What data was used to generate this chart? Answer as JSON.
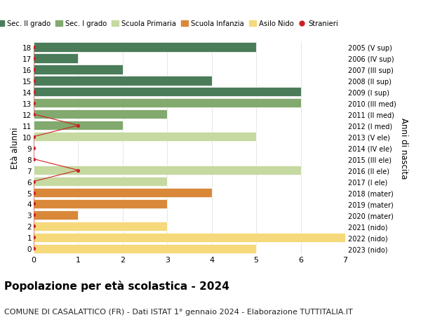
{
  "ages": [
    18,
    17,
    16,
    15,
    14,
    13,
    12,
    11,
    10,
    9,
    8,
    7,
    6,
    5,
    4,
    3,
    2,
    1,
    0
  ],
  "right_labels": [
    "2005 (V sup)",
    "2006 (IV sup)",
    "2007 (III sup)",
    "2008 (II sup)",
    "2009 (I sup)",
    "2010 (III med)",
    "2011 (II med)",
    "2012 (I med)",
    "2013 (V ele)",
    "2014 (IV ele)",
    "2015 (III ele)",
    "2016 (II ele)",
    "2017 (I ele)",
    "2018 (mater)",
    "2019 (mater)",
    "2020 (mater)",
    "2021 (nido)",
    "2022 (nido)",
    "2023 (nido)"
  ],
  "bar_values": [
    5,
    1,
    2,
    4,
    6,
    6,
    3,
    2,
    5,
    0,
    0,
    6,
    3,
    4,
    3,
    1,
    3,
    7,
    5
  ],
  "bar_colors": [
    "#4a7c59",
    "#4a7c59",
    "#4a7c59",
    "#4a7c59",
    "#4a7c59",
    "#82a96e",
    "#82a96e",
    "#82a96e",
    "#c5d9a0",
    "#c5d9a0",
    "#c5d9a0",
    "#c5d9a0",
    "#c5d9a0",
    "#d9883a",
    "#d9883a",
    "#d9883a",
    "#f5d97a",
    "#f5d97a",
    "#f5d97a"
  ],
  "stranieri_dot_x": [
    0,
    0,
    0,
    0,
    0,
    0,
    0,
    1,
    0,
    0,
    0,
    1,
    0,
    0,
    0,
    0,
    0,
    0,
    0
  ],
  "legend_labels": [
    "Sec. II grado",
    "Sec. I grado",
    "Scuola Primaria",
    "Scuola Infanzia",
    "Asilo Nido",
    "Stranieri"
  ],
  "legend_colors": [
    "#4a7c59",
    "#82a96e",
    "#c5d9a0",
    "#d9883a",
    "#f5d97a",
    "#cc2222"
  ],
  "ylabel": "Età alunni",
  "ylabel_right": "Anni di nascita",
  "xlim": [
    0,
    7
  ],
  "ylim": [
    -0.5,
    18.5
  ],
  "title": "Popolazione per età scolastica - 2024",
  "subtitle": "COMUNE DI CASALATTICO (FR) - Dati ISTAT 1° gennaio 2024 - Elaborazione TUTTITALIA.IT",
  "title_fontsize": 11,
  "subtitle_fontsize": 8,
  "bg_color": "#ffffff",
  "grid_color": "#cccccc",
  "stranieri_line_color": "#cc2222",
  "bar_height": 0.85
}
